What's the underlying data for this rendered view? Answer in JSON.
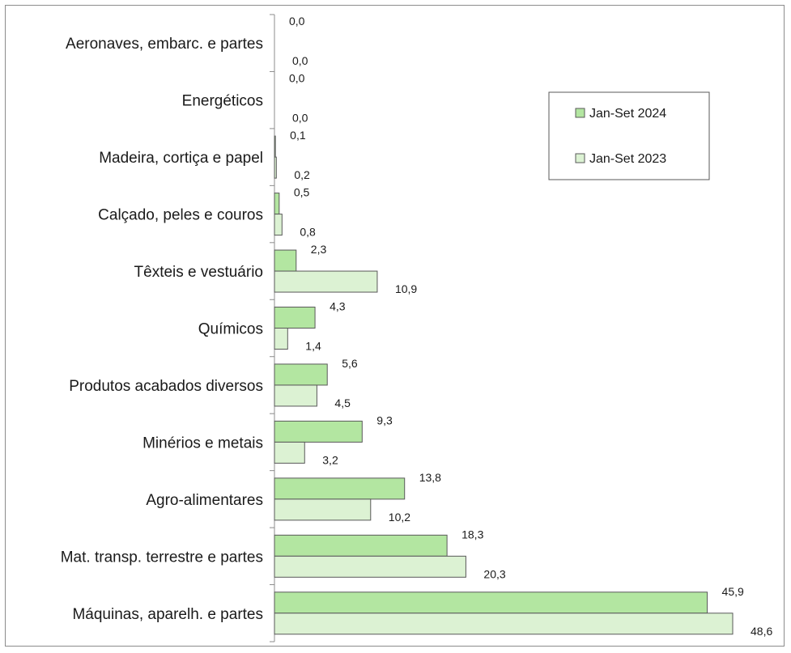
{
  "chart_data": {
    "type": "bar",
    "orientation": "horizontal",
    "categories": [
      "Aeronaves, embarc. e partes",
      "Energéticos",
      "Madeira, cortiça e papel",
      "Calçado, peles e couros",
      "Têxteis e vestuário",
      "Químicos",
      "Produtos acabados diversos",
      "Minérios e metais",
      "Agro-alimentares",
      "Mat. transp. terrestre e partes",
      "Máquinas, aparelh. e partes"
    ],
    "series": [
      {
        "name": "Jan-Set 2024",
        "color": "#b3e6a1",
        "values": [
          0.0,
          0.0,
          0.1,
          0.5,
          2.3,
          4.3,
          5.6,
          9.3,
          13.8,
          18.3,
          45.9
        ],
        "labels": [
          "0,0",
          "0,0",
          "0,1",
          "0,5",
          "2,3",
          "4,3",
          "5,6",
          "9,3",
          "13,8",
          "18,3",
          "45,9"
        ]
      },
      {
        "name": "Jan-Set 2023",
        "color": "#dcf2d3",
        "values": [
          0.0,
          0.0,
          0.2,
          0.8,
          10.9,
          1.4,
          4.5,
          3.2,
          10.2,
          20.3,
          48.6
        ],
        "labels": [
          "0,0",
          "0,0",
          "0,2",
          "0,8",
          "10,9",
          "1,4",
          "4,5",
          "3,2",
          "10,2",
          "20,3",
          "48,6"
        ]
      }
    ],
    "xlim": [
      0,
      50
    ],
    "grid": false,
    "legend_position": "top-right",
    "bar_outline_color": "#595959"
  }
}
